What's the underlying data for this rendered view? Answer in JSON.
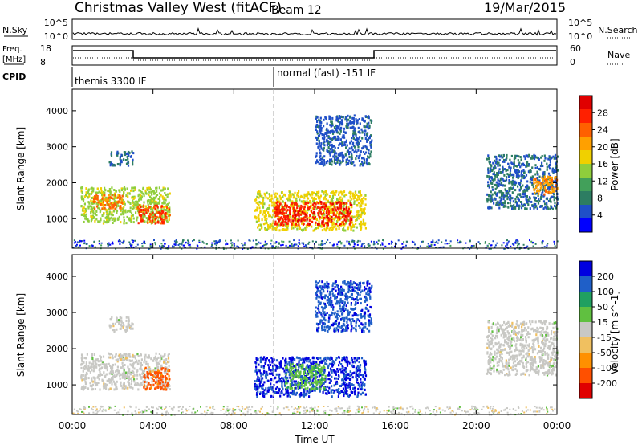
{
  "header": {
    "title": "Christmas Valley West (fitACF)",
    "beam": "Beam 12",
    "date": "19/Mar/2015"
  },
  "top_panels": {
    "nsky_label": "N.Sky",
    "nsky_ticks": [
      "10^5",
      "10^0"
    ],
    "nsearch_label": "N.Search",
    "nsearch_ticks": [
      "10^5",
      "10^0"
    ],
    "freq_label_line1": "Freq.",
    "freq_label_line2": "[MHz]",
    "freq_ticks": [
      "18",
      "8"
    ],
    "nave_label": "Nave",
    "nave_ticks": [
      "60",
      "0"
    ],
    "cpid_label": "CPID",
    "cpid_segments": [
      {
        "label": "themis 3300 IF",
        "start_hour": 0,
        "end_hour": 10
      },
      {
        "label": "normal (fast) -151 IF",
        "start_hour": 10,
        "end_hour": 24
      }
    ]
  },
  "x_axis": {
    "label": "Time UT",
    "tick_labels": [
      "00:00",
      "04:00",
      "08:00",
      "12:00",
      "16:00",
      "20:00",
      "00:00"
    ]
  },
  "colors": {
    "power": [
      "#0000ff",
      "#1f4fc8",
      "#2d7d62",
      "#42a05a",
      "#8fce3c",
      "#f0d000",
      "#ffa000",
      "#ff6000",
      "#ff2000",
      "#e00000"
    ],
    "velocity": [
      "#e00000",
      "#ff5000",
      "#ff9000",
      "#f0c060",
      "#c8c8c4",
      "#60c040",
      "#20a060",
      "#1f5fc8",
      "#0000e0"
    ]
  },
  "chart_data": [
    {
      "type": "heatmap",
      "name": "power-panel",
      "ylabel": "Slant Range [km]",
      "y_ticks": [
        1000,
        2000,
        3000,
        4000
      ],
      "ylim": [
        180,
        4600
      ],
      "xlim": [
        0,
        24
      ],
      "colorbar_label": "Power [dB]",
      "colorbar_ticks": [
        "28",
        "24",
        "20",
        "16",
        "12",
        "8",
        "4"
      ],
      "scale": [
        0,
        30
      ],
      "regions": [
        {
          "t0": 0.4,
          "t1": 4.8,
          "r0": 900,
          "r1": 1900,
          "value": 14
        },
        {
          "t0": 1.0,
          "t1": 2.5,
          "r0": 1300,
          "r1": 1700,
          "value": 22
        },
        {
          "t0": 3.2,
          "t1": 4.8,
          "r0": 900,
          "r1": 1400,
          "value": 24
        },
        {
          "t0": 1.8,
          "t1": 3.0,
          "r0": 2500,
          "r1": 2900,
          "value": 6
        },
        {
          "t0": 9.0,
          "t1": 14.5,
          "r0": 700,
          "r1": 1800,
          "value": 16
        },
        {
          "t0": 10.0,
          "t1": 13.8,
          "r0": 850,
          "r1": 1500,
          "value": 26
        },
        {
          "t0": 12.0,
          "t1": 14.8,
          "r0": 2500,
          "r1": 3900,
          "value": 5
        },
        {
          "t0": 20.5,
          "t1": 24.0,
          "r0": 1300,
          "r1": 2800,
          "value": 6
        },
        {
          "t0": 22.8,
          "t1": 24.0,
          "r0": 1700,
          "r1": 2200,
          "value": 20
        }
      ]
    },
    {
      "type": "heatmap",
      "name": "velocity-panel",
      "ylabel": "Slant Range [km]",
      "y_ticks": [
        1000,
        2000,
        3000,
        4000
      ],
      "ylim": [
        180,
        4600
      ],
      "xlim": [
        0,
        24
      ],
      "colorbar_label": "Velocity [m s^-1]",
      "colorbar_ticks": [
        "200",
        "100",
        "50",
        "15",
        "-15",
        "-50",
        "-100",
        "-200"
      ],
      "scale": [
        -250,
        250
      ],
      "regions": [
        {
          "t0": 0.4,
          "t1": 4.8,
          "r0": 900,
          "r1": 1900,
          "value": 0
        },
        {
          "t0": 3.5,
          "t1": 4.8,
          "r0": 900,
          "r1": 1500,
          "value": -160
        },
        {
          "t0": 1.8,
          "t1": 3.0,
          "r0": 2500,
          "r1": 2900,
          "value": 0
        },
        {
          "t0": 9.0,
          "t1": 14.5,
          "r0": 700,
          "r1": 1800,
          "value": 200
        },
        {
          "t0": 10.5,
          "t1": 12.5,
          "r0": 900,
          "r1": 1600,
          "value": 60
        },
        {
          "t0": 12.0,
          "t1": 14.8,
          "r0": 2500,
          "r1": 3900,
          "value": 180
        },
        {
          "t0": 20.5,
          "t1": 24.0,
          "r0": 1300,
          "r1": 2800,
          "value": 0
        }
      ]
    }
  ]
}
